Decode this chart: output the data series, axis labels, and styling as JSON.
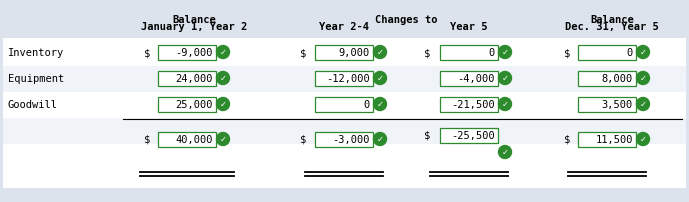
{
  "bg_color": "#dde3ed",
  "white_bg": "#ffffff",
  "row_alt_bg": "#f0f3f8",
  "header_text_color": "#000000",
  "text_color": "#000000",
  "check_color": "#2d8a2d",
  "box_color": "#2d8a2d",
  "font_family": "monospace",
  "rows": [
    {
      "label": "Inventory",
      "v1": "-9,000",
      "v2": "9,000",
      "v3": "0",
      "v4": "0",
      "d1": true,
      "d2": true,
      "d3": true,
      "d4": true
    },
    {
      "label": "Equipment",
      "v1": "24,000",
      "v2": "-12,000",
      "v3": "-4,000",
      "v4": "8,000",
      "d1": false,
      "d2": false,
      "d3": false,
      "d4": false
    },
    {
      "label": "Goodwill",
      "v1": "25,000",
      "v2": "0",
      "v3": "-21,500",
      "v4": "3,500",
      "d1": false,
      "d2": false,
      "d3": false,
      "d4": false
    }
  ],
  "total": {
    "v1": "40,000",
    "v2": "-3,000",
    "v3": "-25,500",
    "v4": "11,500"
  },
  "h1_line1": "Balance",
  "h1_line2": "January 1, Year 2",
  "h2_line1": "Changes to",
  "h2_line2": "Year 2-4",
  "h3_line1": "",
  "h3_line2": "Year 5",
  "h4_line1": "Balance",
  "h4_line2": "Dec. 31, Year 5"
}
